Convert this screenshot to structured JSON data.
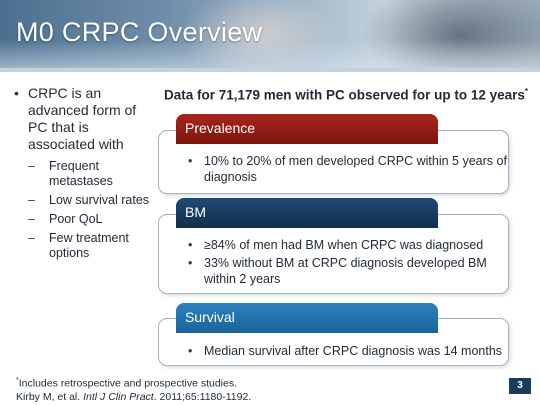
{
  "slide": {
    "title": "M0 CRPC Overview",
    "page_number": "3"
  },
  "left": {
    "main_bullet": "CRPC is an advanced form of PC that is associated with",
    "sub_bullets": [
      "Frequent metastases",
      "Low survival rates",
      "Poor QoL",
      "Few treatment options"
    ]
  },
  "data_heading": {
    "text": "Data for 71,179 men with PC observed for up to 12 years",
    "marker": "*"
  },
  "cards": [
    {
      "title": "Prevalence",
      "color": "#8b1a12",
      "bullets": [
        "10% to 20% of men developed CRPC within 5 years of diagnosis"
      ]
    },
    {
      "title": "BM",
      "color": "#153a5c",
      "bullets": [
        "≥84% of men had BM when CRPC was diagnosed",
        "33% without BM at CRPC diagnosis developed BM within 2 years"
      ]
    },
    {
      "title": "Survival",
      "color": "#1f6fa8",
      "bullets": [
        "Median survival after CRPC diagnosis was 14 months"
      ]
    }
  ],
  "footnote": {
    "marker": "*",
    "line1": "Includes retrospective and prospective studies.",
    "line2_prefix": "Kirby M, et al. ",
    "line2_journal": "Intl J Clin Pract",
    "line2_suffix": ". 2011;65:1180-1192."
  }
}
